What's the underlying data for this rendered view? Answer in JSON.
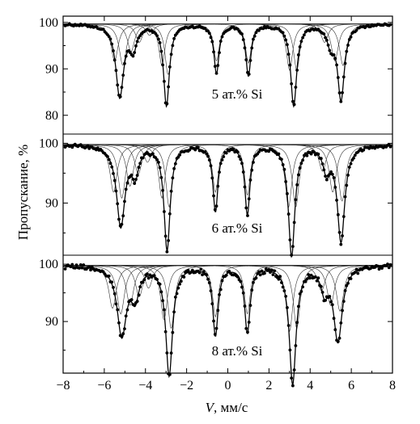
{
  "chart_data": {
    "type": "scatter",
    "xlabel_var": "V",
    "xlabel_unit": ", мм/с",
    "ylabel": "Пропускание, %",
    "xlim": [
      -8,
      8
    ],
    "xticks": [
      -8,
      -6,
      -4,
      -2,
      0,
      2,
      4,
      6,
      8
    ],
    "grid": false,
    "panels": [
      {
        "label": "5 ат.% Si",
        "ylim": [
          77,
          101
        ],
        "yticks": [
          100,
          90,
          80
        ],
        "baseline": 99.7,
        "peaks": [
          {
            "x": -5.25,
            "depth": 15.5,
            "width": 0.46
          },
          {
            "x": -4.6,
            "depth": 5.0,
            "width": 0.4
          },
          {
            "x": -2.98,
            "depth": 17.5,
            "width": 0.34
          },
          {
            "x": -0.55,
            "depth": 10.5,
            "width": 0.3
          },
          {
            "x": 1.0,
            "depth": 11.0,
            "width": 0.3
          },
          {
            "x": 3.2,
            "depth": 17.5,
            "width": 0.36
          },
          {
            "x": 5.0,
            "depth": 4.0,
            "width": 0.4
          },
          {
            "x": 5.5,
            "depth": 16.0,
            "width": 0.4
          }
        ],
        "subspectra": [
          {
            "x": -5.5,
            "depth": 8.0,
            "width": 0.42
          },
          {
            "x": -5.1,
            "depth": 9.0,
            "width": 0.42
          },
          {
            "x": -4.7,
            "depth": 6.0,
            "width": 0.42
          },
          {
            "x": -4.3,
            "depth": 4.0,
            "width": 0.42
          },
          {
            "x": -3.8,
            "depth": 2.5,
            "width": 0.42
          },
          {
            "x": -3.2,
            "depth": 9.0,
            "width": 0.36
          },
          {
            "x": -2.9,
            "depth": 11.0,
            "width": 0.36
          },
          {
            "x": -0.55,
            "depth": 8.0,
            "width": 0.34
          },
          {
            "x": 1.0,
            "depth": 8.5,
            "width": 0.34
          },
          {
            "x": 3.0,
            "depth": 10.0,
            "width": 0.38
          },
          {
            "x": 3.35,
            "depth": 10.0,
            "width": 0.38
          },
          {
            "x": 4.7,
            "depth": 4.0,
            "width": 0.42
          },
          {
            "x": 5.2,
            "depth": 8.0,
            "width": 0.42
          },
          {
            "x": 5.6,
            "depth": 9.0,
            "width": 0.42
          }
        ]
      },
      {
        "label": "6 ат.% Si",
        "ylim": [
          81,
          101
        ],
        "yticks": [
          100,
          90
        ],
        "baseline": 99.8,
        "peaks": [
          {
            "x": -5.2,
            "depth": 13.5,
            "width": 0.5
          },
          {
            "x": -4.5,
            "depth": 4.5,
            "width": 0.4
          },
          {
            "x": -2.95,
            "depth": 17.5,
            "width": 0.36
          },
          {
            "x": -0.6,
            "depth": 11.0,
            "width": 0.3
          },
          {
            "x": 0.95,
            "depth": 11.5,
            "width": 0.3
          },
          {
            "x": 3.1,
            "depth": 18.5,
            "width": 0.38
          },
          {
            "x": 4.8,
            "depth": 4.0,
            "width": 0.4
          },
          {
            "x": 5.5,
            "depth": 16.0,
            "width": 0.44
          }
        ],
        "subspectra": [
          {
            "x": -5.55,
            "depth": 8.0,
            "width": 0.42
          },
          {
            "x": -5.15,
            "depth": 9.0,
            "width": 0.42
          },
          {
            "x": -4.75,
            "depth": 7.0,
            "width": 0.42
          },
          {
            "x": -4.35,
            "depth": 5.0,
            "width": 0.42
          },
          {
            "x": -3.9,
            "depth": 3.0,
            "width": 0.42
          },
          {
            "x": -3.2,
            "depth": 9.0,
            "width": 0.38
          },
          {
            "x": -2.85,
            "depth": 10.5,
            "width": 0.38
          },
          {
            "x": -0.6,
            "depth": 8.0,
            "width": 0.34
          },
          {
            "x": 0.95,
            "depth": 8.5,
            "width": 0.34
          },
          {
            "x": 2.95,
            "depth": 10.5,
            "width": 0.4
          },
          {
            "x": 3.3,
            "depth": 10.5,
            "width": 0.4
          },
          {
            "x": 4.6,
            "depth": 4.5,
            "width": 0.42
          },
          {
            "x": 5.1,
            "depth": 8.0,
            "width": 0.42
          },
          {
            "x": 5.55,
            "depth": 9.5,
            "width": 0.42
          }
        ]
      },
      {
        "label": "8 ат.% Si",
        "ylim": [
          81,
          101
        ],
        "yticks": [
          100,
          90
        ],
        "baseline": 99.8,
        "peaks": [
          {
            "x": -5.15,
            "depth": 12.0,
            "width": 0.55
          },
          {
            "x": -4.5,
            "depth": 5.0,
            "width": 0.45
          },
          {
            "x": -2.85,
            "depth": 19.0,
            "width": 0.4
          },
          {
            "x": -0.6,
            "depth": 12.0,
            "width": 0.32
          },
          {
            "x": 0.95,
            "depth": 11.5,
            "width": 0.32
          },
          {
            "x": 3.15,
            "depth": 20.5,
            "width": 0.4
          },
          {
            "x": 4.7,
            "depth": 4.0,
            "width": 0.4
          },
          {
            "x": 5.35,
            "depth": 13.0,
            "width": 0.5
          }
        ],
        "subspectra": [
          {
            "x": -5.6,
            "depth": 7.5,
            "width": 0.44
          },
          {
            "x": -5.2,
            "depth": 8.5,
            "width": 0.44
          },
          {
            "x": -4.75,
            "depth": 7.0,
            "width": 0.44
          },
          {
            "x": -4.3,
            "depth": 5.5,
            "width": 0.44
          },
          {
            "x": -3.85,
            "depth": 4.0,
            "width": 0.44
          },
          {
            "x": -3.1,
            "depth": 9.5,
            "width": 0.4
          },
          {
            "x": -2.75,
            "depth": 11.0,
            "width": 0.4
          },
          {
            "x": -0.6,
            "depth": 9.0,
            "width": 0.34
          },
          {
            "x": 0.95,
            "depth": 8.5,
            "width": 0.34
          },
          {
            "x": 3.0,
            "depth": 11.5,
            "width": 0.4
          },
          {
            "x": 3.35,
            "depth": 11.0,
            "width": 0.4
          },
          {
            "x": 4.55,
            "depth": 4.5,
            "width": 0.44
          },
          {
            "x": 5.0,
            "depth": 7.0,
            "width": 0.44
          },
          {
            "x": 5.45,
            "depth": 8.0,
            "width": 0.44
          }
        ]
      }
    ]
  }
}
